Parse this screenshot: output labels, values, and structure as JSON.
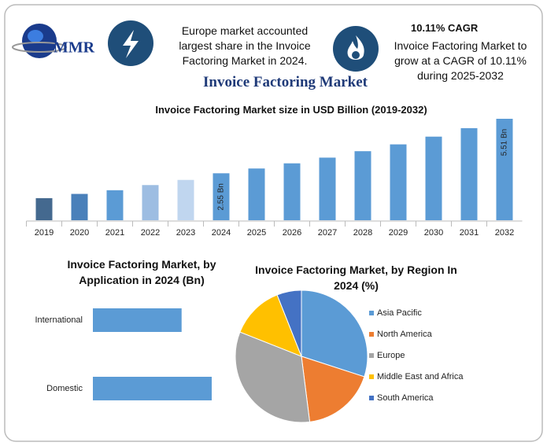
{
  "logo": "MMR",
  "header": {
    "note_left": "Europe market accounted largest share in the Invoice Factoring Market in 2024.",
    "note_right_title": "10.11% CAGR",
    "note_right": "Invoice Factoring Market to grow at a CAGR of 10.11% during 2025-2032",
    "title": "Invoice Factoring Market"
  },
  "chart_data": [
    {
      "type": "bar",
      "title": "Invoice Factoring Market size in USD Billion (2019-2032)",
      "categories": [
        "2019",
        "2020",
        "2021",
        "2022",
        "2023",
        "2024",
        "2025",
        "2026",
        "2027",
        "2028",
        "2029",
        "2030",
        "2031",
        "2032"
      ],
      "values": [
        1.2,
        1.43,
        1.63,
        1.91,
        2.19,
        2.55,
        2.81,
        3.09,
        3.4,
        3.75,
        4.12,
        4.54,
        5.0,
        5.51
      ],
      "value_labels": [
        null,
        null,
        null,
        null,
        null,
        "2.55 Bn",
        null,
        null,
        null,
        null,
        null,
        null,
        null,
        "5.51 Bn"
      ],
      "colors": [
        "#44698f",
        "#4a80ba",
        "#5b9bd5",
        "#9dbde2",
        "#c0d6ef",
        "#5b9bd5",
        "#5b9bd5",
        "#5b9bd5",
        "#5b9bd5",
        "#5b9bd5",
        "#5b9bd5",
        "#5b9bd5",
        "#5b9bd5",
        "#5b9bd5"
      ]
    },
    {
      "type": "hbar",
      "title": "Invoice Factoring Market, by Application in 2024 (Bn)",
      "categories": [
        "International",
        "Domestic"
      ],
      "values": [
        1.09,
        1.46
      ],
      "color": "#5b9bd5"
    },
    {
      "type": "pie",
      "title": "Invoice Factoring Market, by Region In 2024 (%)",
      "categories": [
        "Asia Pacific",
        "North America",
        "Europe",
        "Middle East and Africa",
        "South America"
      ],
      "values": [
        30,
        18,
        33,
        13,
        6
      ],
      "colors": [
        "#5b9bd5",
        "#ed7d31",
        "#a5a5a5",
        "#ffc000",
        "#4472c4"
      ]
    }
  ]
}
